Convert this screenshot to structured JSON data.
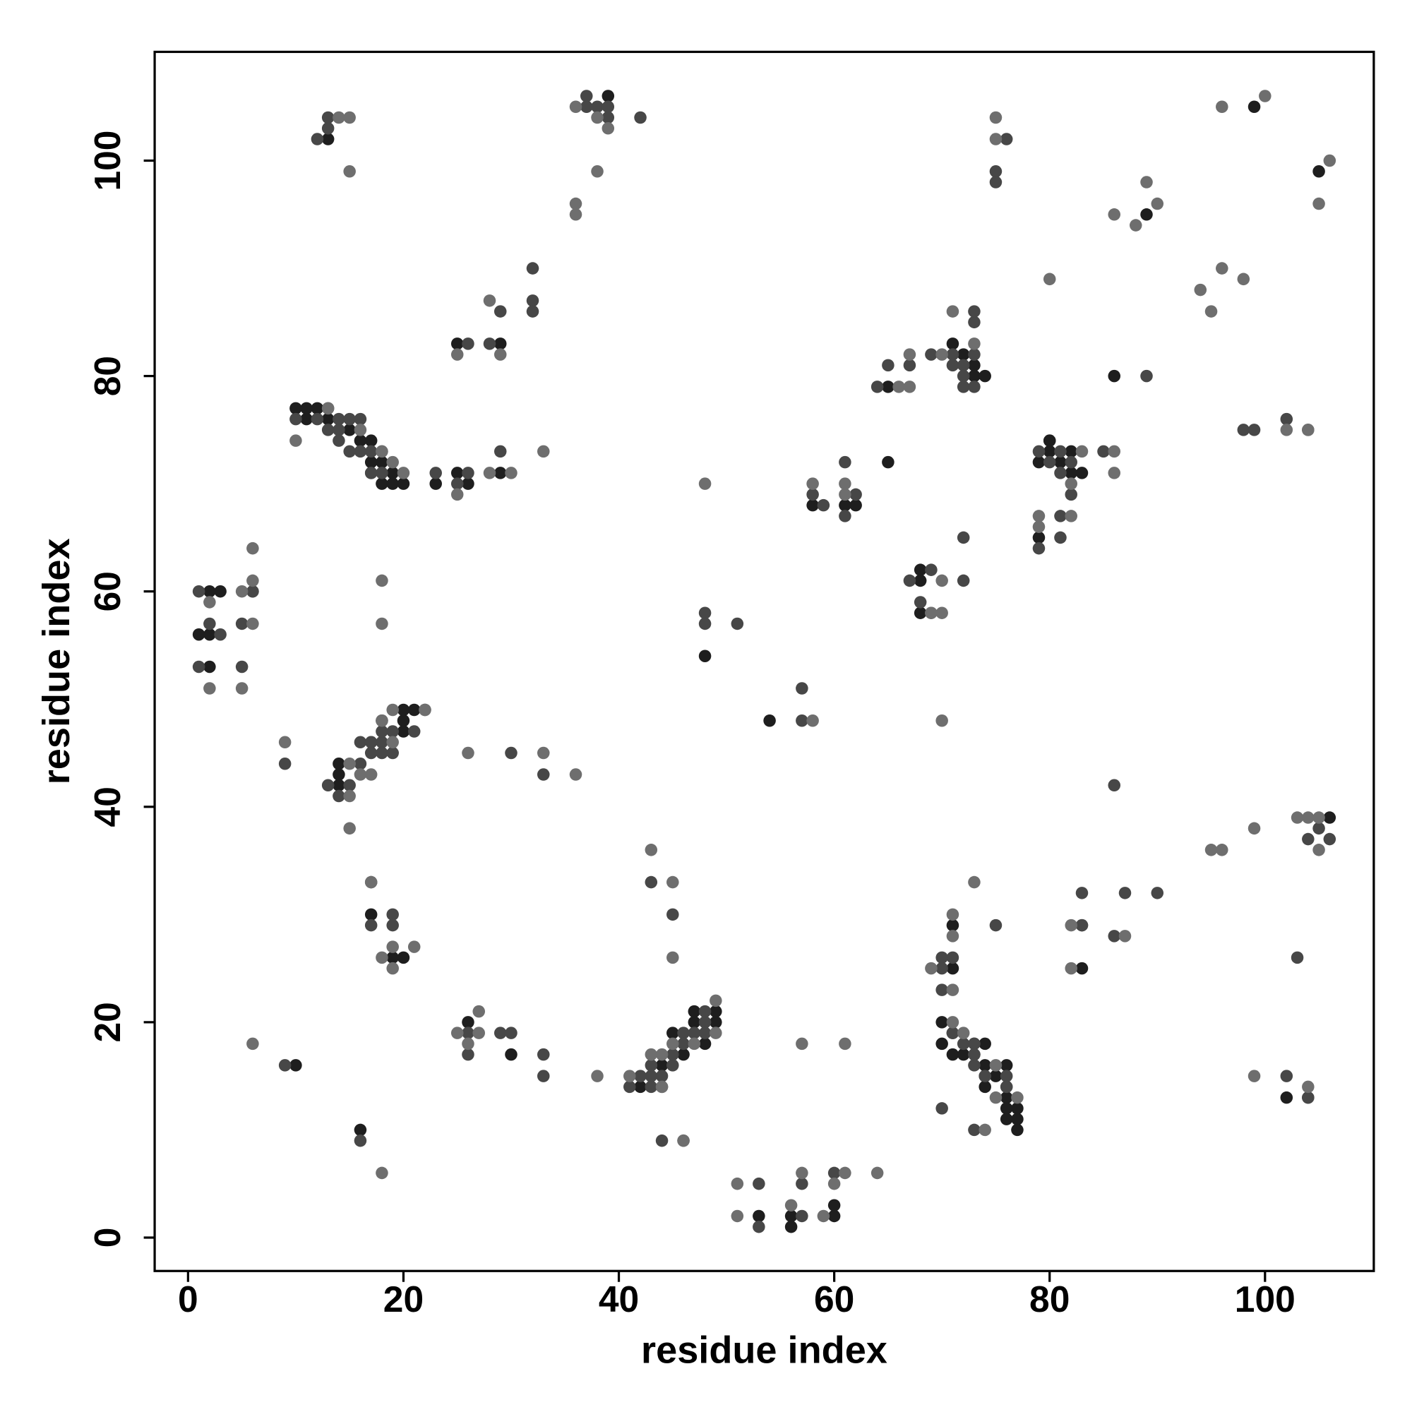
{
  "chart_data": {
    "type": "scatter",
    "x_label": "residue index",
    "y_label": "residue index",
    "xlim": [
      -3.1,
      110.1
    ],
    "ylim": [
      -3.1,
      110.1
    ],
    "xticks": [
      0,
      20,
      40,
      60,
      80,
      100
    ],
    "yticks": [
      0,
      20,
      40,
      60,
      80,
      100
    ],
    "series": [
      {
        "color": "#1e1e1e",
        "x": [
          13,
          39,
          25,
          29,
          10,
          11,
          12,
          11,
          13,
          15,
          16,
          17,
          17,
          18,
          17,
          19,
          18,
          19,
          20,
          23,
          25,
          26,
          29,
          2,
          3,
          6,
          1,
          2,
          2,
          14,
          14,
          14,
          20,
          18,
          20,
          20,
          21,
          17,
          19,
          20,
          10,
          16,
          26,
          30,
          42,
          44,
          45,
          46,
          47,
          47,
          48,
          49,
          49,
          53,
          56,
          56,
          60,
          60,
          48,
          54,
          58,
          61,
          62,
          65,
          65,
          71,
          72,
          73,
          73,
          74,
          68,
          68,
          68,
          80,
          86,
          79,
          80,
          80,
          81,
          82,
          82,
          83,
          79,
          89,
          99,
          105,
          106,
          83,
          102,
          71,
          71,
          70,
          70,
          71,
          71,
          72,
          74,
          74,
          74,
          74,
          75,
          76,
          76,
          76,
          76,
          77,
          77,
          77
        ],
        "y": [
          102,
          106,
          83,
          83,
          77,
          77,
          77,
          76,
          76,
          75,
          74,
          74,
          72,
          72,
          71,
          71,
          70,
          70,
          70,
          70,
          71,
          70,
          71,
          60,
          60,
          60,
          56,
          56,
          53,
          42,
          43,
          44,
          47,
          48,
          48,
          49,
          49,
          30,
          26,
          26,
          16,
          10,
          20,
          17,
          14,
          16,
          19,
          17,
          20,
          21,
          18,
          21,
          20,
          2,
          2,
          1,
          3,
          2,
          54,
          48,
          68,
          68,
          68,
          72,
          79,
          83,
          82,
          81,
          80,
          80,
          62,
          61,
          58,
          74,
          80,
          72,
          74,
          73,
          72,
          73,
          71,
          71,
          65,
          95,
          105,
          99,
          39,
          25,
          13,
          29,
          25,
          20,
          18,
          19,
          17,
          17,
          18,
          16,
          15,
          14,
          15,
          16,
          13,
          12,
          11,
          11,
          12,
          10
        ]
      },
      {
        "color": "#474747",
        "x": [
          12,
          13,
          13,
          37,
          37,
          38,
          39,
          39,
          42,
          32,
          32,
          32,
          29,
          26,
          28,
          10,
          12,
          13,
          14,
          13,
          14,
          15,
          14,
          16,
          15,
          16,
          17,
          17,
          18,
          23,
          26,
          25,
          29,
          1,
          6,
          3,
          2,
          5,
          1,
          5,
          9,
          13,
          15,
          14,
          17,
          16,
          17,
          18,
          16,
          17,
          18,
          19,
          18,
          19,
          21,
          22,
          30,
          33,
          17,
          19,
          17,
          19,
          9,
          16,
          26,
          26,
          29,
          30,
          33,
          33,
          41,
          42,
          43,
          43,
          43,
          44,
          44,
          45,
          45,
          46,
          46,
          47,
          48,
          48,
          48,
          43,
          45,
          44,
          46,
          53,
          53,
          57,
          57,
          60,
          48,
          48,
          51,
          57,
          57,
          58,
          59,
          61,
          62,
          61,
          64,
          65,
          67,
          69,
          71,
          71,
          72,
          72,
          72,
          73,
          73,
          73,
          73,
          72,
          72,
          67,
          69,
          68,
          89,
          79,
          80,
          81,
          81,
          82,
          82,
          85,
          79,
          81,
          81,
          76,
          75,
          75,
          98,
          99,
          102,
          104,
          105,
          106,
          104,
          86,
          87,
          90,
          83,
          83,
          86,
          83,
          103,
          104,
          104,
          102,
          70,
          71,
          70,
          70,
          70,
          71,
          72,
          73,
          73,
          73,
          73,
          74,
          73,
          75,
          76,
          76,
          76,
          73
        ],
        "y": [
          102,
          103,
          104,
          106,
          105,
          105,
          105,
          104,
          104,
          90,
          87,
          86,
          86,
          83,
          83,
          76,
          76,
          77,
          76,
          75,
          75,
          76,
          74,
          76,
          73,
          73,
          73,
          71,
          71,
          71,
          71,
          70,
          73,
          60,
          60,
          56,
          57,
          57,
          53,
          53,
          44,
          42,
          42,
          41,
          45,
          44,
          46,
          46,
          46,
          46,
          45,
          45,
          47,
          47,
          47,
          49,
          45,
          43,
          33,
          30,
          29,
          29,
          16,
          9,
          19,
          17,
          19,
          19,
          17,
          15,
          14,
          15,
          15,
          14,
          16,
          15,
          14,
          16,
          17,
          19,
          18,
          19,
          20,
          19,
          21,
          33,
          30,
          9,
          9,
          5,
          1,
          2,
          5,
          6,
          58,
          57,
          57,
          51,
          48,
          69,
          68,
          72,
          69,
          67,
          79,
          81,
          81,
          82,
          82,
          81,
          81,
          80,
          79,
          82,
          79,
          85,
          86,
          65,
          61,
          61,
          62,
          59,
          80,
          73,
          72,
          73,
          71,
          72,
          69,
          73,
          64,
          67,
          65,
          102,
          99,
          98,
          75,
          75,
          76,
          75,
          38,
          37,
          37,
          42,
          32,
          32,
          32,
          29,
          28,
          29,
          26,
          13,
          13,
          15,
          12,
          26,
          26,
          25,
          23,
          19,
          18,
          18,
          18,
          17,
          16,
          15,
          17,
          29,
          14,
          15,
          14,
          10
        ]
      },
      {
        "color": "#6e6e6e",
        "x": [
          14,
          15,
          15,
          36,
          38,
          39,
          38,
          36,
          36,
          28,
          25,
          29,
          13,
          16,
          18,
          18,
          19,
          20,
          10,
          25,
          28,
          30,
          33,
          2,
          5,
          6,
          6,
          6,
          2,
          5,
          18,
          18,
          9,
          15,
          16,
          17,
          19,
          19,
          18,
          22,
          26,
          33,
          36,
          15,
          15,
          17,
          18,
          19,
          21,
          19,
          6,
          18,
          25,
          27,
          27,
          26,
          38,
          41,
          43,
          44,
          45,
          47,
          49,
          49,
          43,
          45,
          45,
          44,
          46,
          51,
          51,
          56,
          57,
          59,
          60,
          61,
          64,
          57,
          61,
          48,
          58,
          70,
          58,
          61,
          61,
          66,
          67,
          67,
          70,
          71,
          73,
          69,
          69,
          70,
          70,
          80,
          82,
          83,
          86,
          86,
          79,
          79,
          82,
          75,
          75,
          86,
          88,
          89,
          90,
          94,
          95,
          96,
          98,
          96,
          100,
          106,
          105,
          102,
          104,
          95,
          96,
          99,
          103,
          104,
          105,
          105,
          82,
          87,
          82,
          99,
          104,
          71,
          71,
          69,
          71,
          71,
          72,
          75,
          75,
          77,
          74,
          73
        ],
        "y": [
          104,
          104,
          99,
          105,
          104,
          103,
          99,
          96,
          95,
          87,
          82,
          82,
          77,
          75,
          73,
          73,
          72,
          71,
          74,
          69,
          71,
          71,
          73,
          59,
          60,
          61,
          64,
          57,
          51,
          51,
          61,
          57,
          46,
          44,
          43,
          43,
          46,
          49,
          48,
          49,
          45,
          45,
          43,
          41,
          38,
          33,
          26,
          27,
          27,
          25,
          18,
          6,
          19,
          19,
          21,
          18,
          15,
          15,
          17,
          17,
          18,
          18,
          22,
          19,
          36,
          33,
          26,
          14,
          9,
          5,
          2,
          3,
          6,
          2,
          5,
          6,
          6,
          18,
          18,
          70,
          48,
          48,
          70,
          70,
          69,
          79,
          79,
          82,
          82,
          86,
          83,
          58,
          58,
          61,
          58,
          89,
          70,
          73,
          73,
          71,
          67,
          66,
          67,
          104,
          102,
          95,
          94,
          98,
          96,
          88,
          86,
          90,
          89,
          105,
          106,
          100,
          96,
          75,
          75,
          36,
          36,
          38,
          39,
          39,
          39,
          36,
          29,
          28,
          25,
          15,
          14,
          30,
          28,
          25,
          23,
          20,
          19,
          16,
          13,
          13,
          10,
          33
        ]
      }
    ]
  }
}
